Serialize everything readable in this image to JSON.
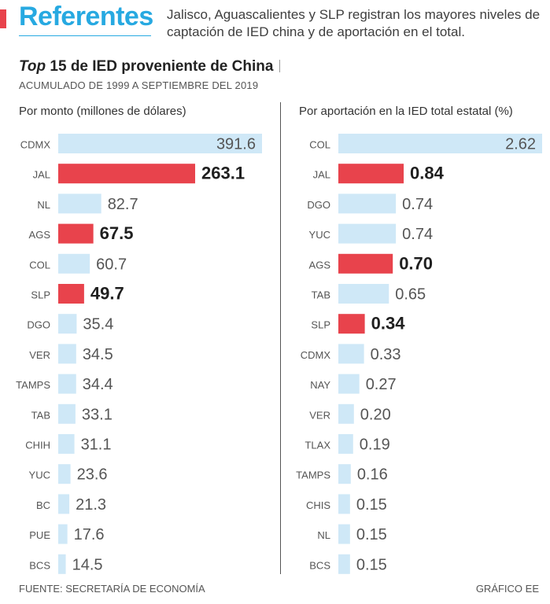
{
  "header": {
    "brand": "Referentes",
    "intro": "Jalisco, Aguascalientes y SLP registran los mayores niveles de captación de IED china y de aportación en el total."
  },
  "title": {
    "emphasis": "Top",
    "rest": " 15 de IED proveniente de China",
    "subtitle": "ACUMULADO DE 1999 A SEPTIEMBRE DEL 2019"
  },
  "colors": {
    "highlight": "#e8434c",
    "normal": "#cfe8f7",
    "brand": "#27a9e1"
  },
  "chart_data": [
    {
      "type": "bar",
      "orientation": "horizontal",
      "title": "Por monto (millones de dólares)",
      "categories": [
        "CDMX",
        "JAL",
        "NL",
        "AGS",
        "COL",
        "SLP",
        "DGO",
        "VER",
        "TAMPS",
        "TAB",
        "CHIH",
        "YUC",
        "BC",
        "PUE",
        "BCS"
      ],
      "values": [
        391.6,
        263.1,
        82.7,
        67.5,
        60.7,
        49.7,
        35.4,
        34.5,
        34.4,
        33.1,
        31.1,
        23.6,
        21.3,
        17.6,
        14.5
      ],
      "labels": [
        "391.6",
        "263.1",
        "82.7",
        "67.5",
        "60.7",
        "49.7",
        "35.4",
        "34.5",
        "34.4",
        "33.1",
        "31.1",
        "23.6",
        "21.3",
        "17.6",
        "14.5"
      ],
      "highlight": [
        "JAL",
        "AGS",
        "SLP"
      ],
      "xlim": [
        0,
        391.6
      ]
    },
    {
      "type": "bar",
      "orientation": "horizontal",
      "title": "Por aportación en la IED total estatal (%)",
      "categories": [
        "COL",
        "JAL",
        "DGO",
        "YUC",
        "AGS",
        "TAB",
        "SLP",
        "CDMX",
        "NAY",
        "VER",
        "TLAX",
        "TAMPS",
        "CHIS",
        "NL",
        "BCS"
      ],
      "values": [
        2.62,
        0.84,
        0.74,
        0.74,
        0.7,
        0.65,
        0.34,
        0.33,
        0.27,
        0.2,
        0.19,
        0.16,
        0.15,
        0.15,
        0.15
      ],
      "labels": [
        "2.62",
        "0.84",
        "0.74",
        "0.74",
        "0.70",
        "0.65",
        "0.34",
        "0.33",
        "0.27",
        "0.20",
        "0.19",
        "0.16",
        "0.15",
        "0.15",
        "0.15"
      ],
      "highlight": [
        "JAL",
        "AGS",
        "SLP"
      ],
      "xlim": [
        0,
        2.62
      ]
    }
  ],
  "footer": {
    "source": "FUENTE: SECRETARÍA DE ECONOMÍA",
    "credit": "GRÁFICO EE"
  }
}
